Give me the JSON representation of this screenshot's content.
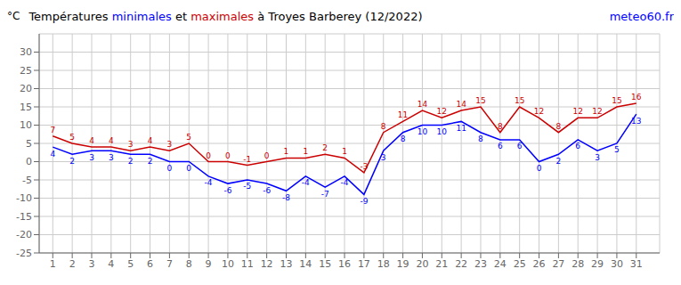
{
  "chart_data": {
    "type": "line",
    "title": "Températures minimales et maximales à Troyes Barberey (12/2022)",
    "ylabel": "°C",
    "annotations": [
      "meteo60.fr"
    ],
    "x": [
      1,
      2,
      3,
      4,
      5,
      6,
      7,
      8,
      9,
      10,
      11,
      12,
      13,
      14,
      15,
      16,
      17,
      18,
      19,
      20,
      21,
      22,
      23,
      24,
      25,
      26,
      27,
      28,
      29,
      30,
      31
    ],
    "series": [
      {
        "name": "minimales",
        "color": "#0000ff",
        "values": [
          4,
          2,
          3,
          3,
          2,
          2,
          0,
          0,
          -4,
          -6,
          -5,
          -6,
          -8,
          -4,
          -7,
          -4,
          -9,
          3,
          8,
          10,
          10,
          11,
          8,
          6,
          6,
          0,
          2,
          6,
          3,
          5,
          13
        ]
      },
      {
        "name": "maximales",
        "color": "#cc0000",
        "values": [
          7,
          5,
          4,
          4,
          3,
          4,
          3,
          5,
          0,
          0,
          -1,
          0,
          1,
          1,
          2,
          1,
          -3,
          8,
          11,
          14,
          12,
          14,
          15,
          8,
          15,
          12,
          8,
          12,
          12,
          15,
          16
        ]
      }
    ],
    "xlim": [
      0.3,
      32.2
    ],
    "xticks": [
      1,
      2,
      3,
      4,
      5,
      6,
      7,
      8,
      9,
      10,
      11,
      12,
      13,
      14,
      15,
      16,
      17,
      18,
      19,
      20,
      21,
      22,
      23,
      24,
      25,
      26,
      27,
      28,
      29,
      30,
      31
    ],
    "ylim": [
      -25,
      35
    ],
    "yticks": [
      -25,
      -20,
      -15,
      -10,
      -5,
      0,
      5,
      10,
      15,
      20,
      25,
      30
    ],
    "grid": true,
    "data_labels": true
  }
}
